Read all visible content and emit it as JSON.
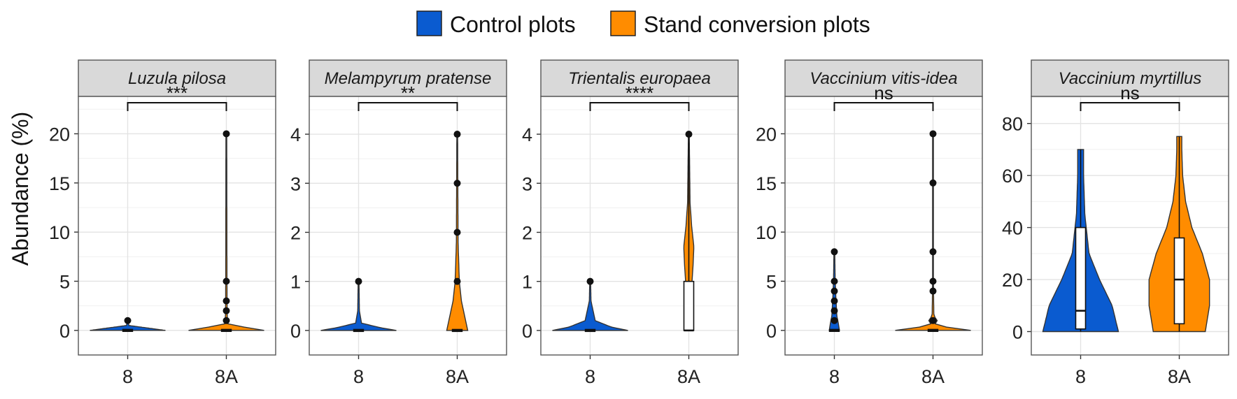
{
  "legend": {
    "entries": [
      {
        "label": "Control plots",
        "color": "#0A5BD0"
      },
      {
        "label": "Stand conversion plots",
        "color": "#FF8C00"
      }
    ]
  },
  "y_axis_label": "Abundance (%)",
  "chart_data": [
    {
      "type": "violin",
      "facet": "Luzula pilosa",
      "categories": [
        "8",
        "8A"
      ],
      "ylim": [
        -2.5,
        23.8
      ],
      "yticks": [
        0,
        5,
        10,
        15,
        20
      ],
      "significance": "***",
      "groups": [
        {
          "category": "8",
          "series": "Control plots",
          "max": 1,
          "box": [
            0,
            0,
            0
          ],
          "outliers": [
            1
          ],
          "density": [
            [
              0,
              0.9
            ],
            [
              0.5,
              0.03
            ],
            [
              1,
              0
            ]
          ]
        },
        {
          "category": "8A",
          "series": "Stand conversion plots",
          "max": 20,
          "box": [
            0,
            0,
            0
          ],
          "outliers": [
            1,
            2,
            3,
            5,
            20
          ],
          "density": [
            [
              0,
              0.9
            ],
            [
              0.6,
              0.04
            ],
            [
              1.5,
              0.02
            ],
            [
              5,
              0.015
            ],
            [
              20,
              0.01
            ]
          ]
        }
      ]
    },
    {
      "type": "violin",
      "facet": "Melampyrum pratense",
      "categories": [
        "8",
        "8A"
      ],
      "ylim": [
        -0.5,
        4.77
      ],
      "yticks": [
        0,
        1,
        2,
        3,
        4
      ],
      "significance": "**",
      "groups": [
        {
          "category": "8",
          "series": "Control plots",
          "max": 1,
          "box": [
            0,
            0,
            0
          ],
          "outliers": [
            1
          ],
          "density": [
            [
              0,
              0.9
            ],
            [
              0.06,
              0.5
            ],
            [
              0.15,
              0.07
            ],
            [
              0.4,
              0.02
            ],
            [
              1,
              0.01
            ]
          ]
        },
        {
          "category": "8A",
          "series": "Stand conversion plots",
          "max": 4,
          "box": [
            0,
            0,
            0
          ],
          "outliers": [
            1,
            2,
            3,
            4
          ],
          "density": [
            [
              0,
              0.25
            ],
            [
              0.2,
              0.2
            ],
            [
              0.6,
              0.1
            ],
            [
              1,
              0.05
            ],
            [
              1.8,
              0.02
            ],
            [
              4,
              0.01
            ]
          ]
        }
      ]
    },
    {
      "type": "violin",
      "facet": "Trientalis europaea",
      "categories": [
        "8",
        "8A"
      ],
      "ylim": [
        -0.5,
        4.77
      ],
      "yticks": [
        0,
        1,
        2,
        3,
        4
      ],
      "significance": "****",
      "groups": [
        {
          "category": "8",
          "series": "Control plots",
          "max": 1,
          "box": [
            0,
            0,
            0
          ],
          "outliers": [
            1
          ],
          "density": [
            [
              0,
              0.9
            ],
            [
              0.07,
              0.5
            ],
            [
              0.2,
              0.12
            ],
            [
              0.6,
              0.02
            ],
            [
              1,
              0.01
            ]
          ]
        },
        {
          "category": "8A",
          "series": "Stand conversion plots",
          "max": 4,
          "box": [
            0,
            0,
            1
          ],
          "outliers": [
            4
          ],
          "density": [
            [
              0,
              0.1
            ],
            [
              0.8,
              0.06
            ],
            [
              1.3,
              0.1
            ],
            [
              1.7,
              0.12
            ],
            [
              2.1,
              0.07
            ],
            [
              2.6,
              0.03
            ],
            [
              4,
              0.01
            ]
          ]
        }
      ]
    },
    {
      "type": "violin",
      "facet": "Vaccinium vitis-idea",
      "categories": [
        "8",
        "8A"
      ],
      "ylim": [
        -2.5,
        23.8
      ],
      "yticks": [
        0,
        5,
        10,
        15,
        20
      ],
      "significance": "ns",
      "groups": [
        {
          "category": "8",
          "series": "Control plots",
          "max": 8,
          "box": [
            0,
            0,
            0
          ],
          "outliers": [
            1,
            2,
            3,
            4,
            5,
            8
          ],
          "density": [
            [
              0,
              0.12
            ],
            [
              0.6,
              0.1
            ],
            [
              1.5,
              0.06
            ],
            [
              3,
              0.04
            ],
            [
              5,
              0.02
            ],
            [
              8,
              0.01
            ]
          ]
        },
        {
          "category": "8A",
          "series": "Stand conversion plots",
          "max": 20,
          "box": [
            0,
            0,
            0
          ],
          "outliers": [
            1,
            4,
            5,
            8,
            15,
            20
          ],
          "density": [
            [
              0,
              0.9
            ],
            [
              0.5,
              0.03
            ],
            [
              1,
              0.1
            ],
            [
              1.5,
              0.02
            ],
            [
              5,
              0.01
            ],
            [
              20,
              0.01
            ]
          ]
        }
      ]
    },
    {
      "type": "violin",
      "facet": "Vaccinium myrtillus",
      "categories": [
        "8",
        "8A"
      ],
      "ylim": [
        -9,
        90.4
      ],
      "yticks": [
        0,
        20,
        40,
        60,
        80
      ],
      "significance": "ns",
      "groups": [
        {
          "category": "8",
          "series": "Control plots",
          "max": 70,
          "box": [
            1,
            8,
            40
          ],
          "outliers": [],
          "density": [
            [
              0,
              0.9
            ],
            [
              10,
              0.75
            ],
            [
              20,
              0.45
            ],
            [
              30,
              0.2
            ],
            [
              45,
              0.1
            ],
            [
              60,
              0.07
            ],
            [
              70,
              0.07
            ]
          ]
        },
        {
          "category": "8A",
          "series": "Stand conversion plots",
          "max": 75,
          "box": [
            3,
            20,
            36
          ],
          "outliers": [],
          "density": [
            [
              0,
              0.62
            ],
            [
              10,
              0.72
            ],
            [
              20,
              0.72
            ],
            [
              30,
              0.55
            ],
            [
              40,
              0.3
            ],
            [
              50,
              0.15
            ],
            [
              60,
              0.08
            ],
            [
              70,
              0.06
            ],
            [
              75,
              0.06
            ]
          ]
        }
      ]
    }
  ]
}
